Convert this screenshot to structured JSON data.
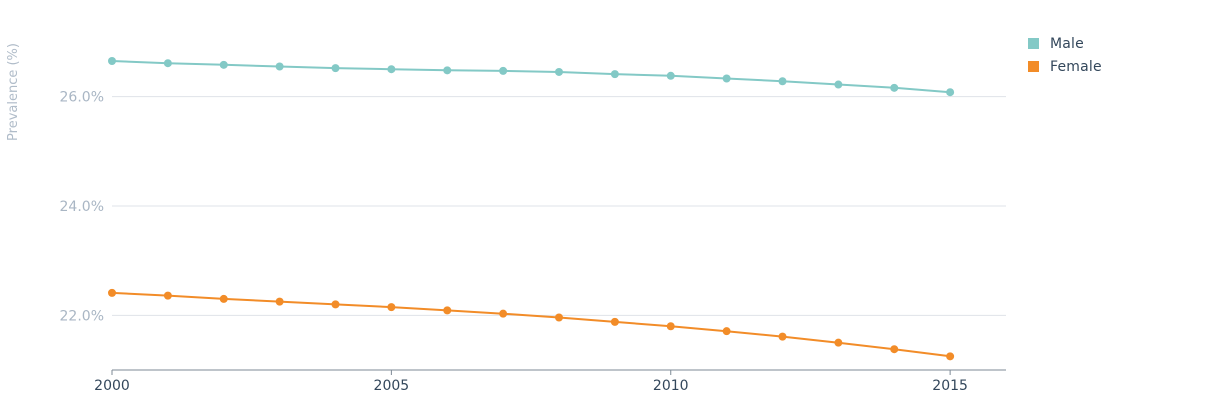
{
  "chart_data": {
    "type": "line",
    "title": "",
    "xlabel": "",
    "ylabel": "Prevalence (%)",
    "x": [
      2000,
      2001,
      2002,
      2003,
      2004,
      2005,
      2006,
      2007,
      2008,
      2009,
      2010,
      2011,
      2012,
      2013,
      2014,
      2015
    ],
    "xticks": [
      "2000",
      "2005",
      "2010",
      "2015"
    ],
    "yticks": [
      "22.0%",
      "24.0%",
      "26.0%"
    ],
    "ylim": [
      21.0,
      27.4
    ],
    "xlim": [
      2000,
      2016
    ],
    "grid": true,
    "legend_position": "top-right",
    "series": [
      {
        "name": "Male",
        "color": "#83c9c6",
        "values": [
          26.65,
          26.61,
          26.58,
          26.55,
          26.52,
          26.5,
          26.48,
          26.47,
          26.45,
          26.41,
          26.38,
          26.33,
          26.28,
          26.22,
          26.16,
          26.08
        ]
      },
      {
        "name": "Female",
        "color": "#f28c28",
        "values": [
          22.41,
          22.36,
          22.3,
          22.25,
          22.2,
          22.15,
          22.09,
          22.03,
          21.96,
          21.88,
          21.8,
          21.71,
          21.61,
          21.5,
          21.38,
          21.25
        ]
      }
    ]
  },
  "legend": {
    "items": [
      {
        "label": "Male",
        "color": "#83c9c6"
      },
      {
        "label": "Female",
        "color": "#f28c28"
      }
    ]
  }
}
